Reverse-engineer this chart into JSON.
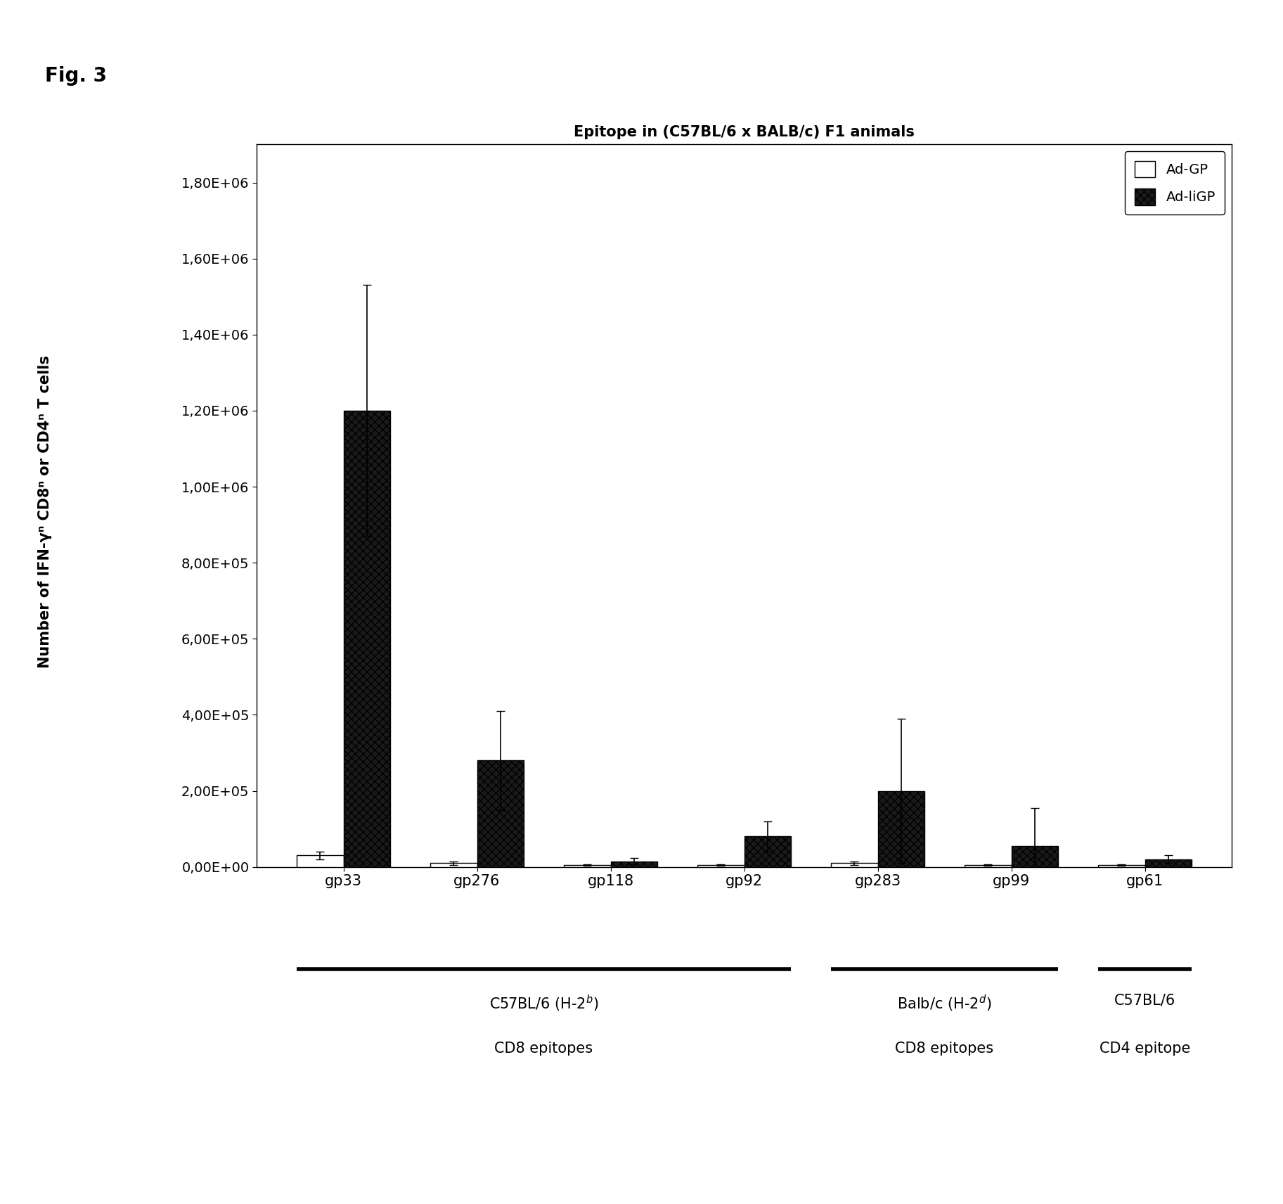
{
  "title": "Epitope in (C57BL/6 x BALB/c) F1 animals",
  "fig_label": "Fig. 3",
  "ylabel_line1": "Number of IFN-γ",
  "ylabel_line2": " CD8",
  "ylabel_line3": " or CD4",
  "ylabel_line4": " T cells",
  "categories": [
    "gp33",
    "gp276",
    "gp118",
    "gp92",
    "gp283",
    "gp99",
    "gp61"
  ],
  "adgp_values": [
    30000,
    10000,
    5000,
    5000,
    10000,
    5000,
    5000
  ],
  "adligp_values": [
    1200000,
    280000,
    15000,
    80000,
    200000,
    55000,
    20000
  ],
  "adgp_errors": [
    10000,
    5000,
    2000,
    2000,
    5000,
    2000,
    2000
  ],
  "adligp_errors": [
    330000,
    130000,
    8000,
    40000,
    190000,
    100000,
    10000
  ],
  "ylim": [
    0,
    1900000
  ],
  "yticks": [
    0,
    200000,
    400000,
    600000,
    800000,
    1000000,
    1200000,
    1400000,
    1600000,
    1800000
  ],
  "bar_width": 0.35,
  "adgp_color": "#ffffff",
  "adligp_color": "#1a1a1a",
  "adligp_hatch": "xxx",
  "legend_labels": [
    "Ad-GP",
    "Ad-liGP"
  ],
  "background_color": "#ffffff",
  "plot_bg_color": "#ffffff",
  "g1_label1": "C57BL/6 (H-2",
  "g1_sup1": "b",
  "g1_label1_end": ")",
  "g1_label2": "CD8 epitopes",
  "g2_label1": "Balb/c (H-2",
  "g2_sup1": "d",
  "g2_label1_end": ")",
  "g2_label2": "CD8 epitopes",
  "g3_label1": "C57BL/6",
  "g3_label2": "CD4 epitope"
}
